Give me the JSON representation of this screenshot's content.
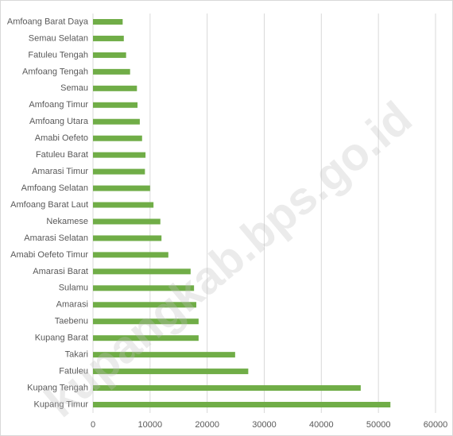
{
  "chart_data": {
    "type": "bar",
    "orientation": "horizontal",
    "categories": [
      "Amfoang Barat Daya",
      "Semau Selatan",
      "Fatuleu Tengah",
      "Amfoang Tengah",
      "Semau",
      "Amfoang Timur",
      "Amfoang Utara",
      "Amabi Oefeto",
      "Fatuleu Barat",
      "Amarasi Timur",
      "Amfoang Selatan",
      "Amfoang Barat Laut",
      "Nekamese",
      "Amarasi Selatan",
      "Amabi Oefeto Timur",
      "Amarasi Barat",
      "Sulamu",
      "Amarasi",
      "Taebenu",
      "Kupang Barat",
      "Takari",
      "Fatuleu",
      "Kupang Tengah",
      "Kupang Timur"
    ],
    "values": [
      5200,
      5400,
      5800,
      6500,
      7700,
      7800,
      8200,
      8600,
      9200,
      9100,
      10000,
      10600,
      11800,
      12000,
      13200,
      17100,
      17700,
      18100,
      18500,
      18500,
      24900,
      27200,
      46900,
      52100
    ],
    "color": "#70ad47",
    "xlim": [
      0,
      60000
    ],
    "xticks": [
      0,
      10000,
      20000,
      30000,
      40000,
      50000,
      60000
    ],
    "grid": true,
    "watermark": "kupangkab.bps.go.id"
  }
}
